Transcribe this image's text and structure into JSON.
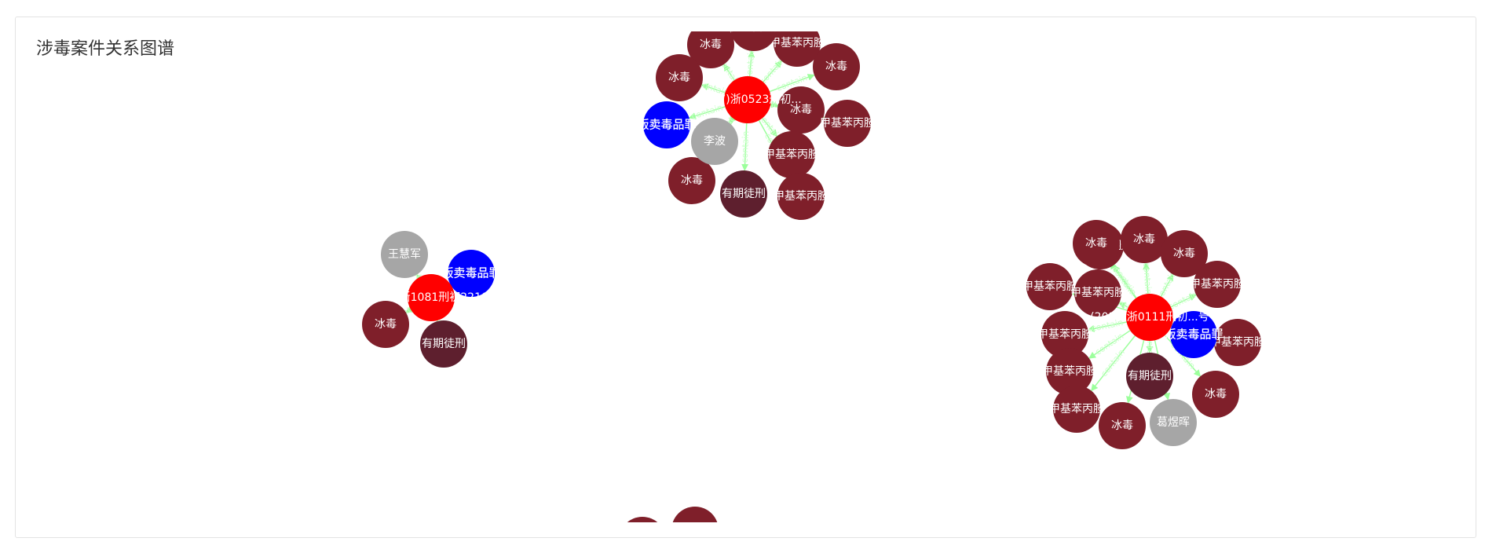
{
  "panel": {
    "title": "涉毒案件关系图谱"
  },
  "colors": {
    "case": "#ff0000",
    "crime": "#0000ff",
    "person": "#a6a6a6",
    "drug": "#7f1f2a",
    "penalty": "#5e1f2e",
    "edge": "#9cff9c",
    "case_label": "#ff2020",
    "crime_label": "#ffffff"
  },
  "graph": {
    "edge_label": "contain",
    "clusters": [
      {
        "case": "(2017)浙0523刑初...",
        "crime": "贩卖毒品罪",
        "person": "李波",
        "penalty": "有期徒刑",
        "drugs": [
          "冰毒",
          "冰毒",
          "冰毒",
          "冰毒",
          "冰毒",
          "甲基苯丙胺",
          "甲基苯丙胺",
          "甲基苯丙胺",
          "甲基苯丙胺",
          "甲基苯丙胺"
        ]
      },
      {
        "case": "(2017)浙1081刑初2210号",
        "crime": "贩卖毒品罪",
        "person": "王慧军",
        "penalty": "有期徒刑",
        "drugs": [
          "冰毒"
        ]
      },
      {
        "case": "(2016)浙0111刑初...号",
        "crime": "贩卖毒品罪",
        "person": "葛煜晖",
        "penalty": "有期徒刑",
        "drugs": [
          "甲基苯丙胺",
          "冰毒",
          "冰毒",
          "甲基苯丙胺",
          "甲基苯丙胺",
          "甲基苯丙胺",
          "甲基苯丙胺",
          "甲基苯丙胺",
          "甲基苯丙胺",
          "甲基苯丙胺",
          "冰毒",
          "冰毒",
          "冰毒"
        ]
      }
    ]
  }
}
